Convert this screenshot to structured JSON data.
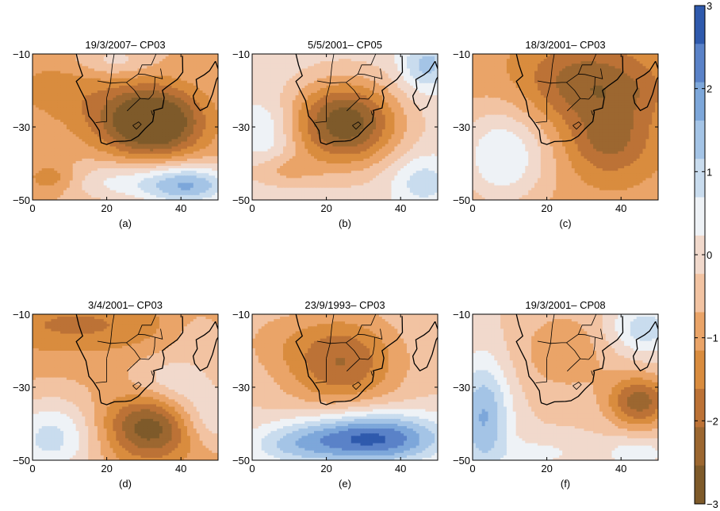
{
  "chart_data": {
    "type": "heatmap",
    "layout": "2x3 grid of filled-contour anomaly maps over southern Africa",
    "x_ticks": [
      0,
      20,
      40
    ],
    "y_ticks": [
      -10,
      -30,
      -50
    ],
    "xlim": [
      0,
      50
    ],
    "ylim": [
      -50,
      -10
    ],
    "grid": false,
    "colorbar": {
      "location": "right",
      "range": [
        -3,
        3
      ],
      "tick_labels": [
        "3",
        "2",
        "1",
        "0",
        "−1",
        "−2",
        "−3"
      ],
      "tick_values": [
        3,
        2,
        1,
        0,
        -1,
        -2,
        -3
      ],
      "levels": [
        -3,
        -2.5,
        -2,
        -1.5,
        -1,
        -0.5,
        0,
        0.5,
        1,
        1.5,
        2,
        2.5,
        3
      ],
      "colors": [
        "#7e5a2a",
        "#9c6730",
        "#bc7236",
        "#d98c3e",
        "#eaa468",
        "#f2c3a2",
        "#f1d9cc",
        "#eef2f6",
        "#c9dcee",
        "#a4c4e6",
        "#7da7da",
        "#5a82c8",
        "#2f5aad"
      ]
    },
    "panels": [
      {
        "title": "19/3/2007– CP03",
        "label": "(a)",
        "background": -0.5,
        "anomalies": [
          {
            "x": 33,
            "y": -29,
            "sx": 9,
            "sy": 6.5,
            "value": -2.7
          },
          {
            "x": 24,
            "y": -26,
            "sx": 12,
            "sy": 7,
            "value": -0.8
          },
          {
            "x": 5,
            "y": -19,
            "sx": 10,
            "sy": 6,
            "value": -0.6
          },
          {
            "x": 42,
            "y": -46,
            "sx": 9,
            "sy": 4,
            "value": 2.5
          },
          {
            "x": 22,
            "y": -45,
            "sx": 10,
            "sy": 4,
            "value": 1.0
          },
          {
            "x": 5,
            "y": -44,
            "sx": 5,
            "sy": 3,
            "value": -0.9
          },
          {
            "x": 22,
            "y": -12,
            "sx": 7,
            "sy": 3,
            "value": 0.8
          }
        ]
      },
      {
        "title": "5/5/2001– CP05",
        "label": "(b)",
        "background": 0.3,
        "anomalies": [
          {
            "x": 25,
            "y": -29,
            "sx": 10,
            "sy": 8,
            "value": -3.2
          },
          {
            "x": 8,
            "y": -42,
            "sx": 7,
            "sy": 3,
            "value": -0.8
          },
          {
            "x": 46,
            "y": -45,
            "sx": 6,
            "sy": 5,
            "value": 1.0
          },
          {
            "x": 4,
            "y": -31,
            "sx": 5,
            "sy": 6,
            "value": 0.8
          },
          {
            "x": 47,
            "y": -13,
            "sx": 5,
            "sy": 5,
            "value": 1.4
          }
        ]
      },
      {
        "title": "18/3/2001– CP03",
        "label": "(c)",
        "background": -0.8,
        "anomalies": [
          {
            "x": 30,
            "y": -18,
            "sx": 12,
            "sy": 8,
            "value": -1.5
          },
          {
            "x": 37,
            "y": -34,
            "sx": 8,
            "sy": 7,
            "value": -1.3
          },
          {
            "x": 8,
            "y": -38,
            "sx": 9,
            "sy": 10,
            "value": 1.8
          },
          {
            "x": 44,
            "y": -20,
            "sx": 8,
            "sy": 6,
            "value": -0.4
          }
        ]
      },
      {
        "title": "3/4/2001– CP03",
        "label": "(d)",
        "background": -0.7,
        "anomalies": [
          {
            "x": 33,
            "y": -41,
            "sx": 9,
            "sy": 6,
            "value": -2.4
          },
          {
            "x": 5,
            "y": -44,
            "sx": 9,
            "sy": 8,
            "value": 1.9
          },
          {
            "x": 46,
            "y": -39,
            "sx": 8,
            "sy": 6,
            "value": 1.5
          },
          {
            "x": 12,
            "y": -13,
            "sx": 18,
            "sy": 5,
            "value": -0.9
          },
          {
            "x": 38,
            "y": -28,
            "sx": 8,
            "sy": 5,
            "value": 1.0
          },
          {
            "x": 44,
            "y": -15,
            "sx": 6,
            "sy": 5,
            "value": 0.5
          }
        ]
      },
      {
        "title": "23/9/1993– CP03",
        "label": "(e)",
        "background": 0.0,
        "anomalies": [
          {
            "x": 24,
            "y": -23,
            "sx": 11,
            "sy": 9,
            "value": -2.0
          },
          {
            "x": 32,
            "y": -44,
            "sx": 14,
            "sy": 5,
            "value": 3.2
          },
          {
            "x": 10,
            "y": -46,
            "sx": 9,
            "sy": 4,
            "value": 1.0
          },
          {
            "x": 5,
            "y": -17,
            "sx": 8,
            "sy": 6,
            "value": -0.4
          }
        ]
      },
      {
        "title": "19/3/2001– CP08",
        "label": "(f)",
        "background": 0.05,
        "anomalies": [
          {
            "x": 45,
            "y": -34,
            "sx": 6,
            "sy": 5,
            "value": -2.3
          },
          {
            "x": 25,
            "y": -20,
            "sx": 10,
            "sy": 9,
            "value": -0.9
          },
          {
            "x": 3,
            "y": -38,
            "sx": 5,
            "sy": 11,
            "value": 2.0
          },
          {
            "x": 46,
            "y": -14,
            "sx": 7,
            "sy": 5,
            "value": 1.3
          },
          {
            "x": 44,
            "y": -48,
            "sx": 6,
            "sy": 3,
            "value": 0.8
          },
          {
            "x": 18,
            "y": -48,
            "sx": 8,
            "sy": 3,
            "value": 0.6
          }
        ]
      }
    ]
  }
}
